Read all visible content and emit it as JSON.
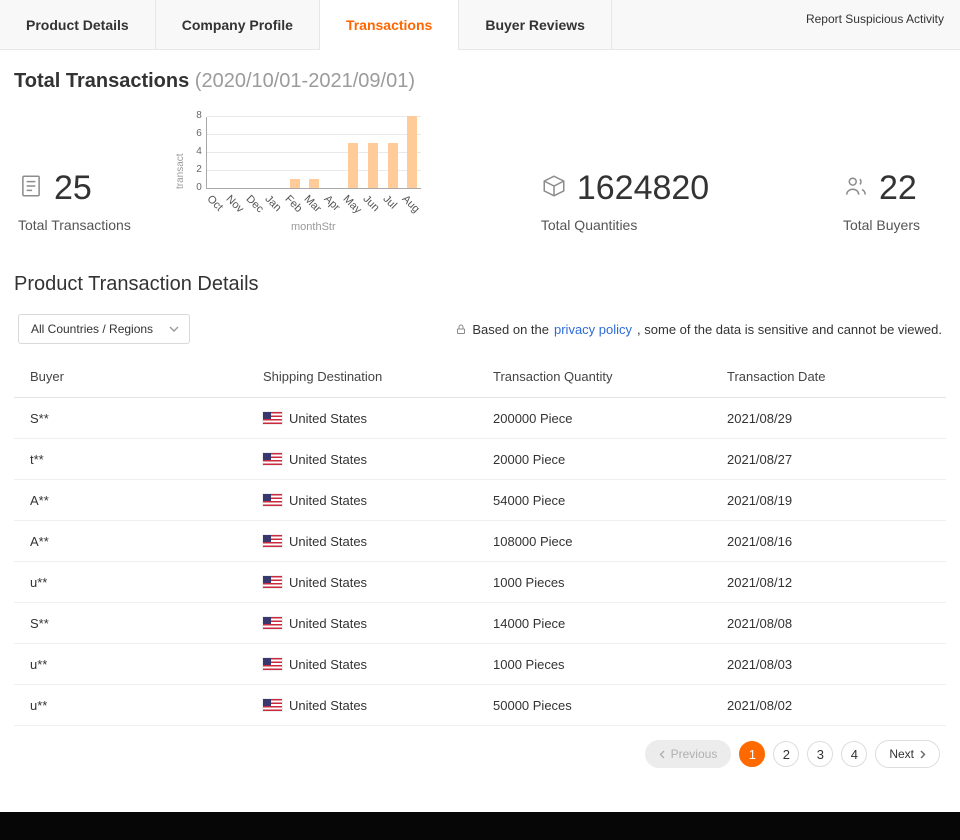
{
  "header": {
    "tabs": [
      {
        "label": "Product Details",
        "active": false
      },
      {
        "label": "Company Profile",
        "active": false
      },
      {
        "label": "Transactions",
        "active": true
      },
      {
        "label": "Buyer Reviews",
        "active": false
      }
    ],
    "report_link": "Report Suspicious Activity"
  },
  "summary": {
    "title": "Total Transactions",
    "date_range": "(2020/10/01-2021/09/01)",
    "stats": [
      {
        "icon": "document-icon",
        "value": "25",
        "label": "Total Transactions"
      },
      {
        "icon": "package-icon",
        "value": "1624820",
        "label": "Total Quantities"
      },
      {
        "icon": "buyers-icon",
        "value": "22",
        "label": "Total Buyers"
      }
    ]
  },
  "chart_data": {
    "type": "bar",
    "categories": [
      "Oct",
      "Nov",
      "Dec",
      "Jan",
      "Feb",
      "Mar",
      "Apr",
      "May",
      "Jun",
      "Jul",
      "Aug"
    ],
    "values": [
      0,
      0,
      0,
      0,
      1,
      1,
      0,
      5,
      5,
      5,
      8
    ],
    "title": "",
    "xlabel": "monthStr",
    "ylabel": "transact",
    "ylim": [
      0,
      8
    ],
    "yticks": [
      0,
      2,
      4,
      6,
      8
    ],
    "bar_color": "#ffcc99",
    "grid": true,
    "legend": "none"
  },
  "details": {
    "title": "Product Transaction Details",
    "filter": {
      "selected": "All Countries / Regions"
    },
    "privacy_note": {
      "prefix": "Based on the ",
      "link": "privacy policy",
      "suffix": ", some of the data is sensitive and cannot be viewed."
    },
    "table": {
      "columns": [
        "Buyer",
        "Shipping Destination",
        "Transaction Quantity",
        "Transaction Date"
      ],
      "rows": [
        {
          "buyer": "S**",
          "destination": "United States",
          "quantity": "200000 Piece",
          "date": "2021/08/29"
        },
        {
          "buyer": "t**",
          "destination": "United States",
          "quantity": "20000 Piece",
          "date": "2021/08/27"
        },
        {
          "buyer": "A**",
          "destination": "United States",
          "quantity": "54000 Piece",
          "date": "2021/08/19"
        },
        {
          "buyer": "A**",
          "destination": "United States",
          "quantity": "108000 Piece",
          "date": "2021/08/16"
        },
        {
          "buyer": "u**",
          "destination": "United States",
          "quantity": "1000 Pieces",
          "date": "2021/08/12"
        },
        {
          "buyer": "S**",
          "destination": "United States",
          "quantity": "14000 Piece",
          "date": "2021/08/08"
        },
        {
          "buyer": "u**",
          "destination": "United States",
          "quantity": "1000 Pieces",
          "date": "2021/08/03"
        },
        {
          "buyer": "u**",
          "destination": "United States",
          "quantity": "50000 Pieces",
          "date": "2021/08/02"
        }
      ]
    },
    "pagination": {
      "previous": "Previous",
      "next": "Next",
      "pages": [
        "1",
        "2",
        "3",
        "4"
      ],
      "active_page": "1"
    }
  },
  "colors": {
    "accent_orange": "#ff6600",
    "bar_fill": "#ffcc99",
    "link_blue": "#2e6bd8"
  }
}
